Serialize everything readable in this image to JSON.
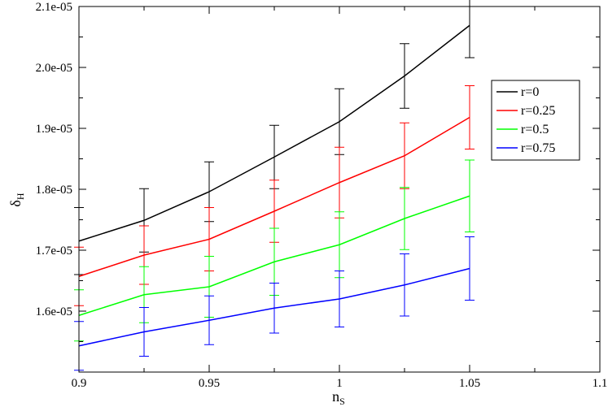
{
  "chart_data": {
    "type": "line",
    "title": "",
    "xlabel": "n",
    "xlabel_sub": "S",
    "ylabel": "δ",
    "ylabel_sub": "H",
    "xlim": [
      0.9,
      1.1
    ],
    "ylim": [
      1.5e-05,
      2.1e-05
    ],
    "xticks": [
      0.9,
      0.95,
      1.0,
      1.05,
      1.1
    ],
    "xtick_labels": [
      "0.9",
      "0.95",
      "1",
      "1.05",
      "1.1"
    ],
    "yticks": [
      1.6e-05,
      1.7e-05,
      1.8e-05,
      1.9e-05,
      2e-05,
      2.1e-05
    ],
    "ytick_labels": [
      "1.6e-05",
      "1.7e-05",
      "1.8e-05",
      "1.9e-05",
      "2.0e-05",
      "2.1e-05"
    ],
    "grid": false,
    "legend_position": "right",
    "x": [
      0.9,
      0.925,
      0.95,
      0.975,
      1.0,
      1.025,
      1.05
    ],
    "series": [
      {
        "name": "r=0",
        "color": "#000000",
        "values": [
          1.715e-05,
          1.749e-05,
          1.796e-05,
          1.853e-05,
          1.911e-05,
          1.986e-05,
          2.069e-05
        ],
        "errors": [
          5.5e-07,
          5.2e-07,
          4.9e-07,
          5.2e-07,
          5.4e-07,
          5.3e-07,
          5.3e-07
        ]
      },
      {
        "name": "r=0.25",
        "color": "#ff0000",
        "values": [
          1.657e-05,
          1.692e-05,
          1.718e-05,
          1.764e-05,
          1.811e-05,
          1.855e-05,
          1.918e-05
        ],
        "errors": [
          4.8e-07,
          4.8e-07,
          5.2e-07,
          5.1e-07,
          5.8e-07,
          5.4e-07,
          5.2e-07
        ]
      },
      {
        "name": "r=0.5",
        "color": "#00ff00",
        "values": [
          1.593e-05,
          1.627e-05,
          1.64e-05,
          1.681e-05,
          1.709e-05,
          1.752e-05,
          1.789e-05
        ],
        "errors": [
          4.2e-07,
          4.6e-07,
          5e-07,
          5.5e-07,
          5.4e-07,
          5.1e-07,
          5.9e-07
        ]
      },
      {
        "name": "r=0.75",
        "color": "#0000ff",
        "values": [
          1.543e-05,
          1.566e-05,
          1.585e-05,
          1.605e-05,
          1.62e-05,
          1.643e-05,
          1.67e-05
        ],
        "errors": [
          4e-07,
          4e-07,
          4e-07,
          4.1e-07,
          4.6e-07,
          5.1e-07,
          5.2e-07
        ]
      }
    ]
  }
}
